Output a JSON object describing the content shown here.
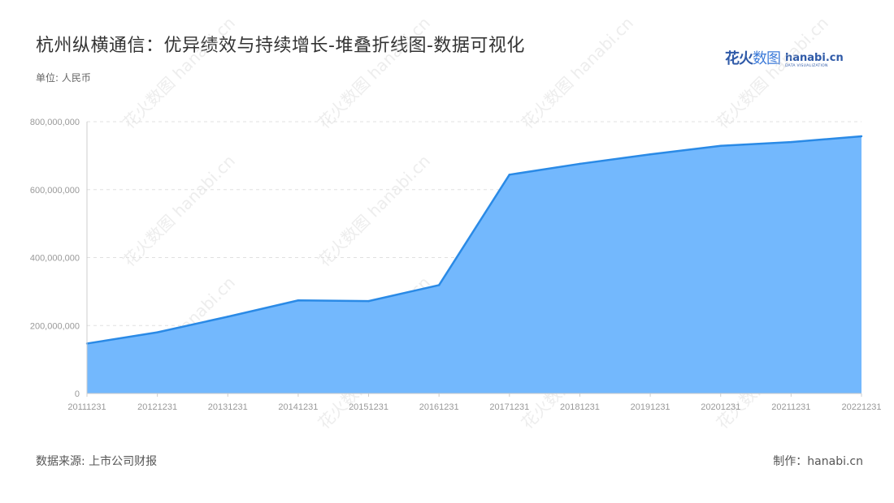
{
  "title": "杭州纵横通信：优异绩效与持续增长-堆叠折线图-数据可视化",
  "unit_label": "单位: 人民币",
  "source_label": "数据来源: 上市公司财报",
  "maker_label": "制作：hanabi.cn",
  "logo": {
    "cn_part1": "花火",
    "cn_part2": "数图",
    "en_main": "hanabi.cn",
    "en_sub": "DATA VISUALIZATION"
  },
  "watermark_text": "花火数图 hanabi.cn",
  "colors": {
    "area_fill": "#73b8fd",
    "line": "#2a8ae6",
    "grid": "#e0e0e0",
    "axis": "#cccccc",
    "tick_text": "#999999"
  },
  "chart_data": {
    "type": "area",
    "stacked": true,
    "title": "杭州纵横通信：优异绩效与持续增长-堆叠折线图-数据可视化",
    "ylabel": "单位: 人民币",
    "categories": [
      "20111231",
      "20121231",
      "20131231",
      "20141231",
      "20151231",
      "20161231",
      "20171231",
      "20181231",
      "20191231",
      "20201231",
      "20211231",
      "20221231"
    ],
    "series": [
      {
        "values": [
          147000000,
          180000000,
          226000000,
          274000000,
          272000000,
          319000000,
          644000000,
          676000000,
          704000000,
          729000000,
          740000000,
          757000000
        ]
      }
    ],
    "ylim": [
      0,
      800000000
    ],
    "yticks": [
      0,
      200000000,
      400000000,
      600000000,
      800000000
    ],
    "ytick_labels": [
      "0",
      "200,000,000",
      "400,000,000",
      "600,000,000",
      "800,000,000"
    ],
    "grid": true,
    "legend": "none"
  }
}
